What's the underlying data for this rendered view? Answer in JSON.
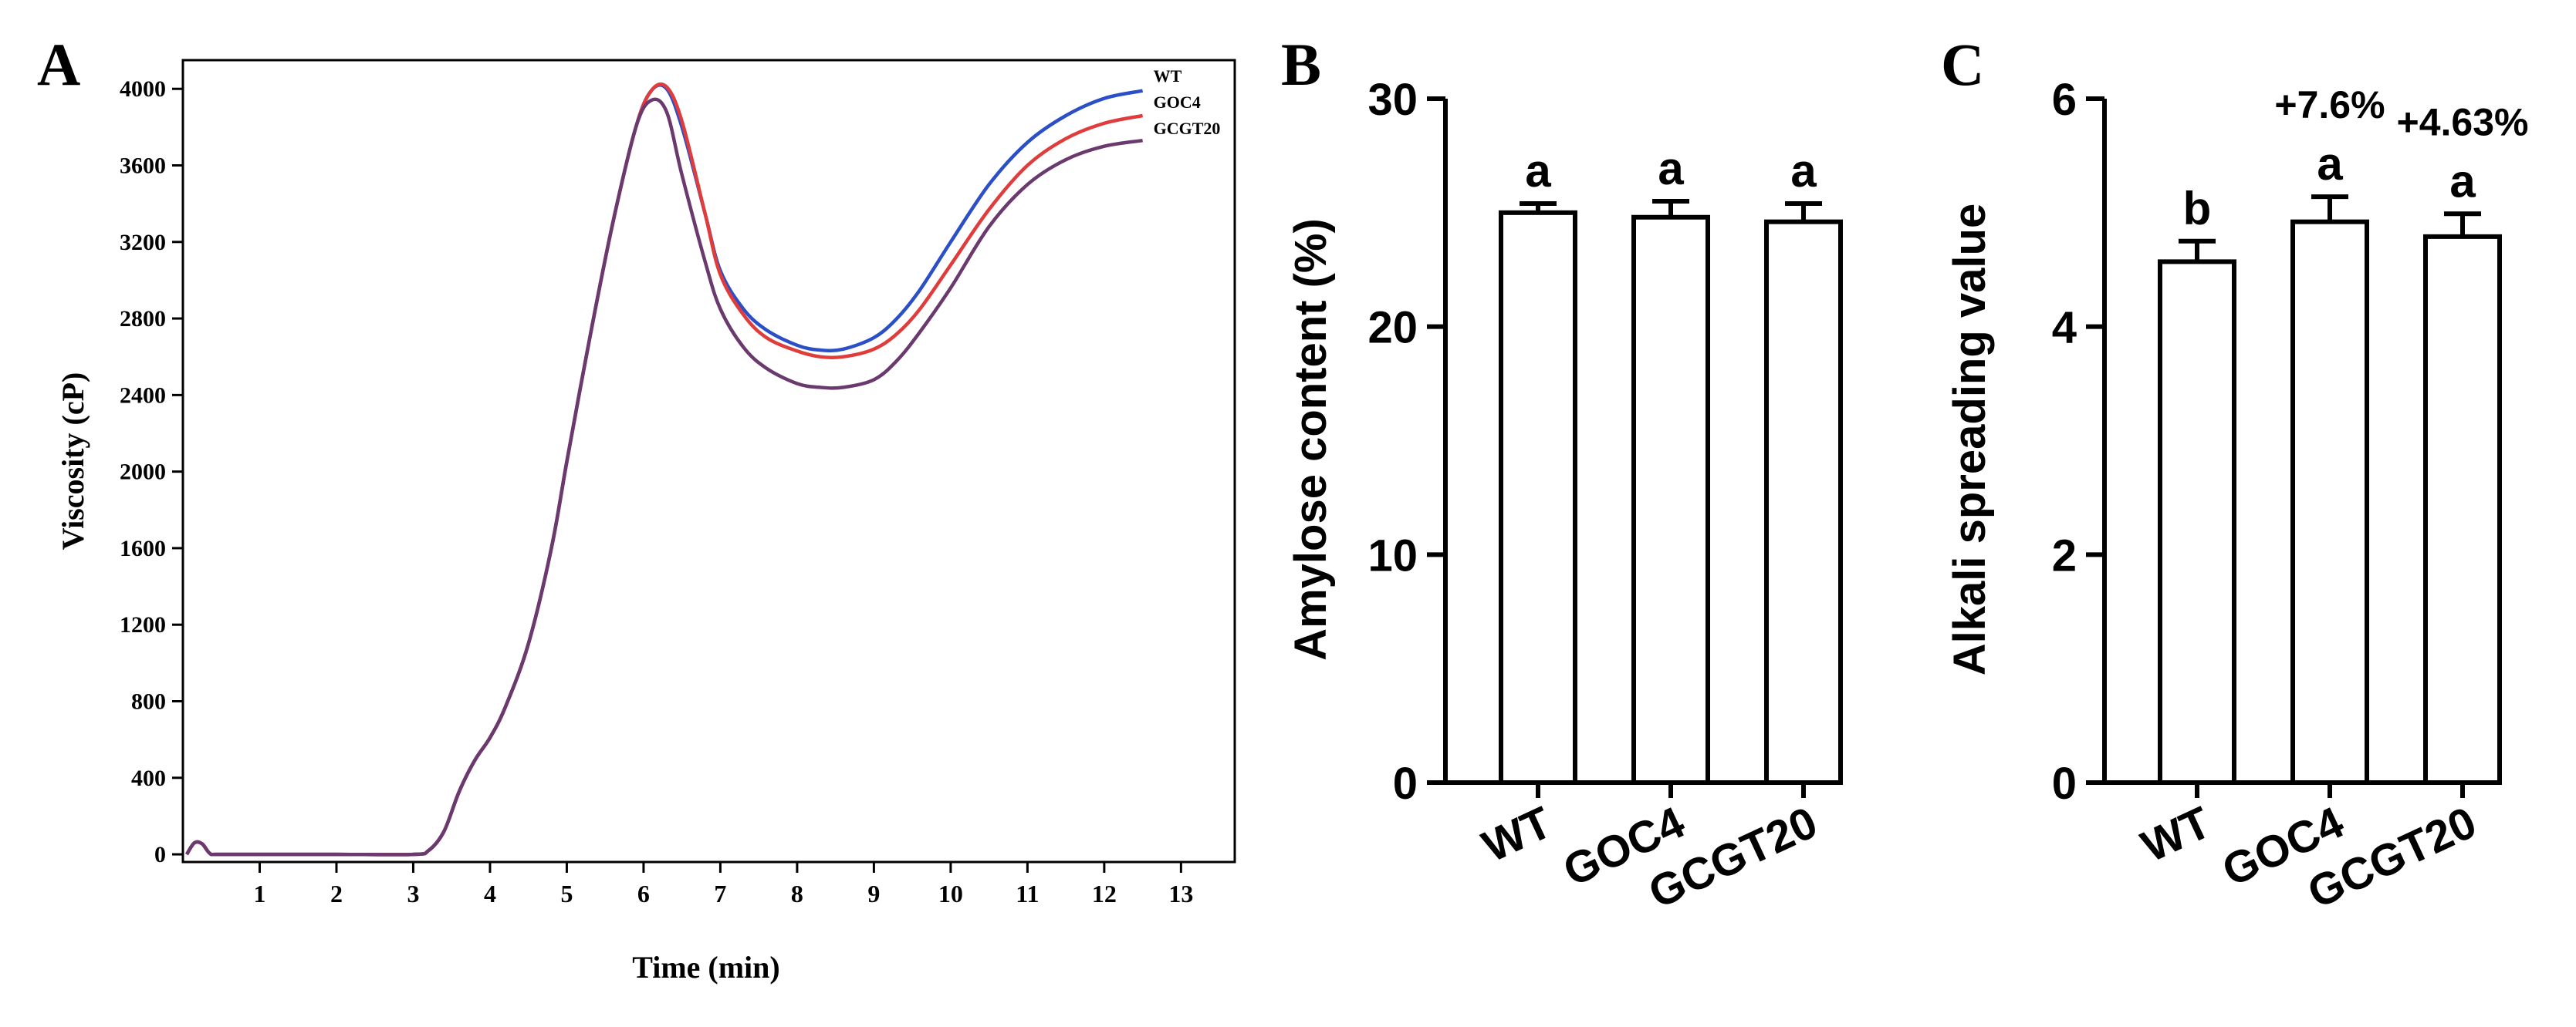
{
  "chart_data": [
    {
      "type": "line",
      "panel_label": "A",
      "title": "",
      "xlabel": "Time (min)",
      "ylabel": "Viscosity (cP)",
      "xlim": [
        0,
        13.7
      ],
      "ylim": [
        -40,
        4150
      ],
      "x_ticks": [
        1,
        2,
        3,
        4,
        5,
        6,
        7,
        8,
        9,
        10,
        11,
        12,
        13
      ],
      "y_ticks": [
        0,
        400,
        800,
        1200,
        1600,
        2000,
        2400,
        2800,
        3200,
        3600,
        4000
      ],
      "grid": false,
      "legend": "top-right",
      "series": [
        {
          "name": "WT",
          "color": "#2b4fc7",
          "x": [
            0.05,
            0.15,
            0.25,
            0.35,
            0.45,
            1,
            2,
            3,
            3.2,
            3.4,
            3.6,
            3.8,
            4.0,
            4.2,
            4.5,
            4.8,
            5.0,
            5.3,
            5.6,
            5.9,
            6.1,
            6.3,
            6.5,
            6.8,
            7.0,
            7.3,
            7.6,
            8.0,
            8.3,
            8.6,
            9.0,
            9.3,
            9.6,
            10.0,
            10.5,
            11.0,
            11.5,
            12.0,
            12.5
          ],
          "y": [
            0,
            60,
            55,
            5,
            0,
            0,
            0,
            0,
            20,
            120,
            330,
            490,
            610,
            770,
            1100,
            1600,
            2050,
            2700,
            3300,
            3800,
            3990,
            4000,
            3800,
            3350,
            3050,
            2850,
            2740,
            2660,
            2635,
            2640,
            2700,
            2800,
            2950,
            3200,
            3500,
            3720,
            3860,
            3950,
            3990
          ]
        },
        {
          "name": "GOC4",
          "color": "#e03c3c",
          "x": [
            0.05,
            0.15,
            0.25,
            0.35,
            0.45,
            1,
            2,
            3,
            3.2,
            3.4,
            3.6,
            3.8,
            4.0,
            4.2,
            4.5,
            4.8,
            5.0,
            5.3,
            5.6,
            5.9,
            6.1,
            6.3,
            6.5,
            6.8,
            7.0,
            7.3,
            7.6,
            8.0,
            8.3,
            8.6,
            9.0,
            9.3,
            9.6,
            10.0,
            10.5,
            11.0,
            11.5,
            12.0,
            12.5
          ],
          "y": [
            0,
            60,
            55,
            5,
            0,
            0,
            0,
            0,
            20,
            120,
            330,
            490,
            610,
            770,
            1100,
            1600,
            2050,
            2700,
            3300,
            3800,
            3990,
            4010,
            3830,
            3350,
            3030,
            2820,
            2700,
            2630,
            2600,
            2600,
            2640,
            2720,
            2850,
            3080,
            3370,
            3600,
            3740,
            3820,
            3860
          ]
        },
        {
          "name": "GCGT20",
          "color": "#6a3a6e",
          "x": [
            0.05,
            0.15,
            0.25,
            0.35,
            0.45,
            1,
            2,
            3,
            3.2,
            3.4,
            3.6,
            3.8,
            4.0,
            4.2,
            4.5,
            4.8,
            5.0,
            5.3,
            5.6,
            5.9,
            6.1,
            6.3,
            6.5,
            6.8,
            7.0,
            7.3,
            7.6,
            8.0,
            8.3,
            8.6,
            9.0,
            9.3,
            9.6,
            10.0,
            10.5,
            11.0,
            11.5,
            12.0,
            12.5
          ],
          "y": [
            0,
            60,
            55,
            5,
            0,
            0,
            0,
            0,
            20,
            120,
            330,
            490,
            610,
            770,
            1100,
            1600,
            2050,
            2700,
            3300,
            3800,
            3940,
            3880,
            3550,
            3100,
            2850,
            2650,
            2540,
            2460,
            2440,
            2440,
            2480,
            2580,
            2730,
            2960,
            3280,
            3500,
            3630,
            3700,
            3730
          ]
        }
      ]
    },
    {
      "type": "bar",
      "panel_label": "B",
      "title": "",
      "xlabel": "",
      "ylabel": "Amylose content (%)",
      "categories": [
        "WT",
        "GOC4",
        "GCGT20"
      ],
      "values": [
        25.0,
        24.8,
        24.6
      ],
      "errors": [
        0.4,
        0.7,
        0.8
      ],
      "significance": [
        "a",
        "a",
        "a"
      ],
      "ylim": [
        0,
        30
      ],
      "y_ticks": [
        0,
        10,
        20,
        30
      ],
      "grid": false
    },
    {
      "type": "bar",
      "panel_label": "C",
      "title": "",
      "xlabel": "",
      "ylabel": "Alkali spreading value",
      "categories": [
        "WT",
        "GOC4",
        "GCGT20"
      ],
      "values": [
        4.57,
        4.92,
        4.79
      ],
      "errors": [
        0.18,
        0.22,
        0.2
      ],
      "significance": [
        "b",
        "a",
        "a"
      ],
      "annotations": [
        "",
        "+7.6%",
        "+4.63%"
      ],
      "ylim": [
        0,
        6
      ],
      "y_ticks": [
        0,
        2,
        4,
        6
      ],
      "grid": false
    }
  ]
}
